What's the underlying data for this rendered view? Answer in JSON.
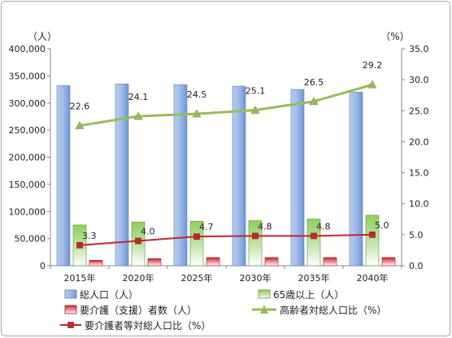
{
  "chart_data": {
    "type": "bar",
    "categories": [
      "2015年",
      "2020年",
      "2025年",
      "2030年",
      "2035年",
      "2040年"
    ],
    "y_left": {
      "unit": "（人）",
      "min": 0,
      "max": 400000,
      "step": 50000,
      "tick_labels": [
        "0",
        "50,000",
        "100,000",
        "150,000",
        "200,000",
        "250,000",
        "300,000",
        "350,000",
        "400,000"
      ]
    },
    "y_right": {
      "unit": "（%）",
      "min": 0,
      "max": 35,
      "step": 5,
      "tick_labels": [
        "0.0",
        "5.0",
        "10.0",
        "15.0",
        "20.0",
        "25.0",
        "30.0",
        "35.0"
      ]
    },
    "series": [
      {
        "name": "総人口（人）",
        "type": "bar",
        "axis": "left",
        "values": [
          332000,
          335000,
          334000,
          331000,
          325000,
          320000
        ],
        "color": "#7ea6e0"
      },
      {
        "name": "65歳以上（人）",
        "type": "bar",
        "axis": "left",
        "values": [
          75000,
          80500,
          82000,
          83000,
          86000,
          93000
        ],
        "color": "#7dbd4a"
      },
      {
        "name": "要介護（支援）者数（人）",
        "type": "bar",
        "axis": "left",
        "values": [
          10000,
          13000,
          15000,
          15000,
          15000,
          15000
        ],
        "color": "#d9363e"
      },
      {
        "name": "高齢者対総人口比（%）",
        "type": "line",
        "axis": "right",
        "values": [
          22.6,
          24.1,
          24.5,
          25.1,
          26.5,
          29.2
        ],
        "labels": [
          "22.6",
          "24.1",
          "24.5",
          "25.1",
          "26.5",
          "29.2"
        ],
        "color": "#9bbb59"
      },
      {
        "name": "要介護者等対総人口比（%）",
        "type": "line",
        "axis": "right",
        "values": [
          3.3,
          4.0,
          4.7,
          4.8,
          4.8,
          5.0
        ],
        "labels": [
          "3.3",
          "4.0",
          "4.7",
          "4.8",
          "4.8",
          "5.0"
        ],
        "color": "#c0282d"
      }
    ],
    "grid": false,
    "legend_position": "bottom"
  }
}
